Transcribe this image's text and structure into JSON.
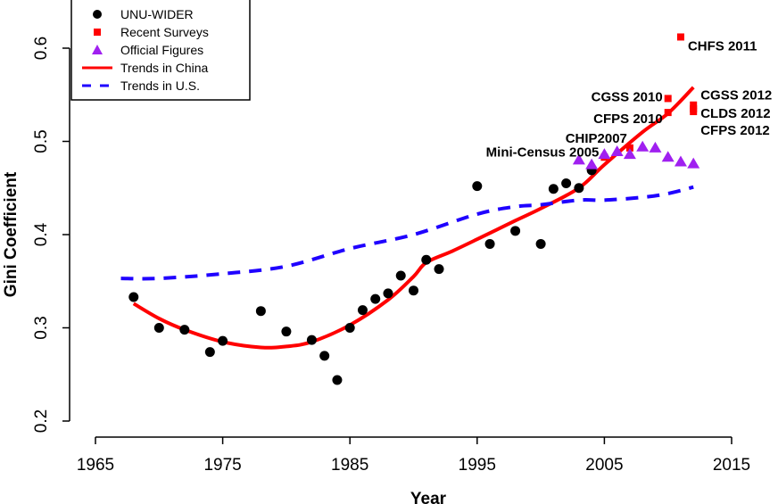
{
  "chart_data": {
    "type": "scatter",
    "xlabel": "Year",
    "ylabel": "Gini Coefficient",
    "xlim": [
      1965,
      2015
    ],
    "ylim": [
      0.2,
      0.6
    ],
    "xticks": [
      1965,
      1975,
      1985,
      1995,
      2005,
      2015
    ],
    "yticks": [
      0.2,
      0.3,
      0.4,
      0.5,
      0.6
    ],
    "grid": false,
    "legend_position": "top-left",
    "series": [
      {
        "name": "UNU-WIDER",
        "kind": "points",
        "marker": "circle",
        "color": "#000000",
        "x": [
          1968,
          1970,
          1972,
          1974,
          1975,
          1978,
          1980,
          1982,
          1983,
          1984,
          1985,
          1986,
          1987,
          1988,
          1989,
          1990,
          1991,
          1992,
          1995,
          1996,
          1998,
          2000,
          2001,
          2002,
          2003,
          2004
        ],
        "y": [
          0.333,
          0.3,
          0.298,
          0.274,
          0.286,
          0.318,
          0.296,
          0.287,
          0.27,
          0.244,
          0.3,
          0.319,
          0.331,
          0.337,
          0.356,
          0.34,
          0.373,
          0.363,
          0.452,
          0.39,
          0.404,
          0.39,
          0.449,
          0.455,
          0.45,
          0.469
        ]
      },
      {
        "name": "Recent Surveys",
        "kind": "points",
        "marker": "square",
        "color": "#ff0000",
        "points": [
          {
            "label": "Mini-Census 2005",
            "x": 2005,
            "y": 0.483
          },
          {
            "label": "CHIP2007",
            "x": 2007,
            "y": 0.493
          },
          {
            "label": "CGSS 2010",
            "x": 2010,
            "y": 0.546
          },
          {
            "label": "CFPS 2010",
            "x": 2010,
            "y": 0.531
          },
          {
            "label": "CHFS 2011",
            "x": 2011,
            "y": 0.612
          },
          {
            "label": "CGSS 2012",
            "x": 2012,
            "y": 0.539
          },
          {
            "label": "CLDS 2012",
            "x": 2012,
            "y": 0.535
          },
          {
            "label": "CFPS 2012",
            "x": 2012,
            "y": 0.532
          }
        ]
      },
      {
        "name": "Official Figures",
        "kind": "points",
        "marker": "triangle",
        "color": "#a020f0",
        "x": [
          2003,
          2004,
          2005,
          2006,
          2007,
          2008,
          2009,
          2010,
          2011,
          2012
        ],
        "y": [
          0.48,
          0.475,
          0.486,
          0.489,
          0.486,
          0.494,
          0.493,
          0.483,
          0.478,
          0.476
        ]
      },
      {
        "name": "Trends in China",
        "kind": "line",
        "style": "solid",
        "color": "#ff0000",
        "x": [
          1968,
          1970,
          1972,
          1975,
          1978,
          1980,
          1982,
          1985,
          1988,
          1990,
          1991,
          1993,
          1995,
          1998,
          2000,
          2003,
          2005,
          2008,
          2010,
          2012
        ],
        "y": [
          0.326,
          0.31,
          0.298,
          0.285,
          0.279,
          0.28,
          0.285,
          0.303,
          0.33,
          0.355,
          0.37,
          0.382,
          0.395,
          0.415,
          0.428,
          0.45,
          0.475,
          0.51,
          0.53,
          0.558
        ]
      },
      {
        "name": "Trends in U.S.",
        "kind": "line",
        "style": "dashed",
        "color": "#1f00ff",
        "x": [
          1967,
          1970,
          1975,
          1980,
          1985,
          1990,
          1995,
          1998,
          2000,
          2003,
          2005,
          2008,
          2010,
          2012
        ],
        "y": [
          0.353,
          0.353,
          0.358,
          0.366,
          0.385,
          0.4,
          0.422,
          0.43,
          0.432,
          0.437,
          0.437,
          0.44,
          0.444,
          0.451
        ]
      }
    ]
  }
}
